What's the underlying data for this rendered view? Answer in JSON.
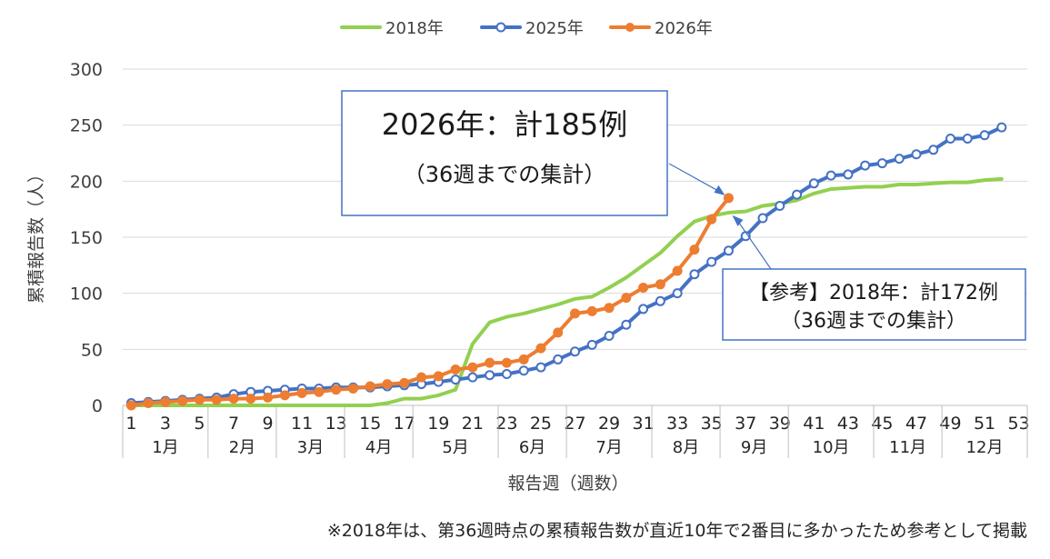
{
  "chart_data": {
    "type": "line",
    "ylabel": "累積報告数（人）",
    "xlabel": "報告週（週数）",
    "ylim": [
      0,
      300
    ],
    "yticks": [
      0,
      50,
      100,
      150,
      200,
      250,
      300
    ],
    "xlim": [
      1,
      53
    ],
    "xticks": [
      "1",
      "3",
      "5",
      "7",
      "9",
      "11",
      "13",
      "15",
      "17",
      "19",
      "21",
      "23",
      "25",
      "27",
      "29",
      "31",
      "33",
      "35",
      "37",
      "39",
      "41",
      "43",
      "45",
      "47",
      "49",
      "51",
      "53"
    ],
    "xtick_values": [
      1,
      3,
      5,
      7,
      9,
      11,
      13,
      15,
      17,
      19,
      21,
      23,
      25,
      27,
      29,
      31,
      33,
      35,
      37,
      39,
      41,
      43,
      45,
      47,
      49,
      51,
      53
    ],
    "months": [
      {
        "label": "1月",
        "start": 0.5,
        "end": 5.5
      },
      {
        "label": "2月",
        "start": 5.5,
        "end": 9.5
      },
      {
        "label": "3月",
        "start": 9.5,
        "end": 13.5
      },
      {
        "label": "4月",
        "start": 13.5,
        "end": 17.5
      },
      {
        "label": "5月",
        "start": 17.5,
        "end": 22.5
      },
      {
        "label": "6月",
        "start": 22.5,
        "end": 26.5
      },
      {
        "label": "7月",
        "start": 26.5,
        "end": 31.5
      },
      {
        "label": "8月",
        "start": 31.5,
        "end": 35.5
      },
      {
        "label": "9月",
        "start": 35.5,
        "end": 39.5
      },
      {
        "label": "10月",
        "start": 39.5,
        "end": 44.5
      },
      {
        "label": "11月",
        "start": 44.5,
        "end": 48.5
      },
      {
        "label": "12月",
        "start": 48.5,
        "end": 53.5
      }
    ],
    "grid": true,
    "legend_position": "top",
    "series": [
      {
        "name": "2018年",
        "color": "#92D050",
        "marker": "none",
        "x": [
          1,
          2,
          3,
          4,
          5,
          6,
          7,
          8,
          9,
          10,
          11,
          12,
          13,
          14,
          15,
          16,
          17,
          18,
          19,
          20,
          21,
          22,
          23,
          24,
          25,
          26,
          27,
          28,
          29,
          30,
          31,
          32,
          33,
          34,
          35,
          36,
          37,
          38,
          39,
          40,
          41,
          42,
          43,
          44,
          45,
          46,
          47,
          48,
          49,
          50,
          51,
          52
        ],
        "values": [
          0,
          0,
          0,
          0,
          0,
          0,
          0,
          0,
          0,
          0,
          0,
          0,
          0,
          0,
          0,
          2,
          6,
          6,
          9,
          14,
          55,
          74,
          79,
          82,
          86,
          90,
          95,
          97,
          105,
          114,
          125,
          136,
          151,
          164,
          169,
          172,
          173,
          178,
          180,
          183,
          189,
          193,
          194,
          195,
          195,
          197,
          197,
          198,
          199,
          199,
          201,
          202
        ]
      },
      {
        "name": "2025年",
        "color": "#4472C4",
        "marker": "open-circle",
        "x": [
          1,
          2,
          3,
          4,
          5,
          6,
          7,
          8,
          9,
          10,
          11,
          12,
          13,
          14,
          15,
          16,
          17,
          18,
          19,
          20,
          21,
          22,
          23,
          24,
          25,
          26,
          27,
          28,
          29,
          30,
          31,
          32,
          33,
          34,
          35,
          36,
          37,
          38,
          39,
          40,
          41,
          42,
          43,
          44,
          45,
          46,
          47,
          48,
          49,
          50,
          51,
          52
        ],
        "values": [
          2,
          3,
          4,
          5,
          6,
          7,
          10,
          12,
          13,
          14,
          15,
          15,
          16,
          16,
          16,
          17,
          18,
          19,
          21,
          23,
          25,
          27,
          28,
          31,
          34,
          41,
          48,
          54,
          62,
          72,
          86,
          93,
          100,
          117,
          128,
          138,
          151,
          167,
          178,
          188,
          198,
          205,
          206,
          214,
          216,
          220,
          224,
          228,
          238,
          238,
          241,
          248
        ]
      },
      {
        "name": "2026年",
        "color": "#ED7D31",
        "marker": "filled-circle",
        "x": [
          1,
          2,
          3,
          4,
          5,
          6,
          7,
          8,
          9,
          10,
          11,
          12,
          13,
          14,
          15,
          16,
          17,
          18,
          19,
          20,
          21,
          22,
          23,
          24,
          25,
          26,
          27,
          28,
          29,
          30,
          31,
          32,
          33,
          34,
          35,
          36
        ],
        "values": [
          0,
          2,
          3,
          4,
          5,
          5,
          6,
          6,
          7,
          9,
          11,
          12,
          14,
          15,
          17,
          19,
          20,
          25,
          26,
          32,
          34,
          38,
          38,
          41,
          51,
          65,
          82,
          84,
          87,
          96,
          105,
          108,
          120,
          139,
          166,
          185
        ]
      }
    ],
    "annotations": [
      {
        "line1": "2026年：計185例",
        "line2": "（36週までの集計）",
        "target_x": 36,
        "target_y": 185
      },
      {
        "line1": "【参考】2018年：計172例",
        "line2": "（36週までの集計）",
        "target_x": 36,
        "target_y": 172
      }
    ]
  },
  "footnote": "※2018年は、第36週時点の累積報告数が直近10年で2番目に多かったため参考として掲載"
}
